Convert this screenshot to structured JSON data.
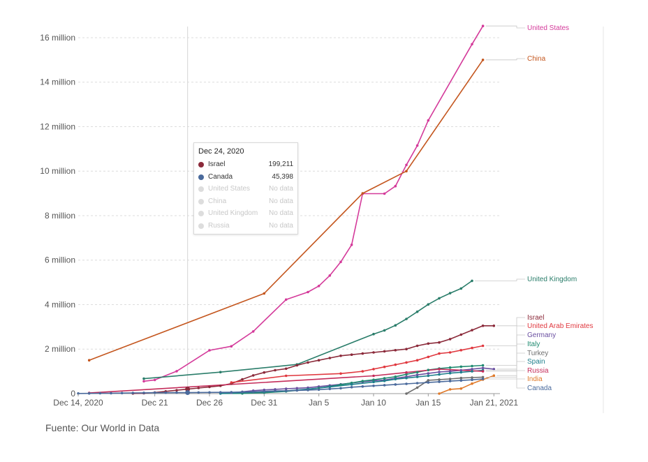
{
  "chart_data": {
    "type": "line",
    "x_ticks": [
      "Dec 14, 2020",
      "Dec 21",
      "Dec 26",
      "Dec 31",
      "Jan 5",
      "Jan 10",
      "Jan 15",
      "Jan 21, 2021"
    ],
    "y_ticks": [
      "0",
      "2 million",
      "4 million",
      "6 million",
      "8 million",
      "10 million",
      "12 million",
      "14 million",
      "16 million"
    ],
    "ylim": [
      0,
      16500000
    ],
    "x_range": [
      "2020-12-14",
      "2021-01-21"
    ],
    "grid": true,
    "legend_placement": "right",
    "hover_date": "2020-12-24",
    "series": [
      {
        "name": "United States",
        "color": "#d43a9a",
        "points": [
          [
            "2020-12-20",
            556000
          ],
          [
            "2020-12-21",
            614000
          ],
          [
            "2020-12-23",
            1008000
          ],
          [
            "2020-12-26",
            1944000
          ],
          [
            "2020-12-28",
            2128000
          ],
          [
            "2020-12-30",
            2795000
          ],
          [
            "2021-01-02",
            4225000
          ],
          [
            "2021-01-04",
            4564000
          ],
          [
            "2021-01-05",
            4837000
          ],
          [
            "2021-01-06",
            5307000
          ],
          [
            "2021-01-07",
            5919000
          ],
          [
            "2021-01-08",
            6689000
          ],
          [
            "2021-01-09",
            8987000
          ],
          [
            "2021-01-11",
            8987000
          ],
          [
            "2021-01-12",
            9327000
          ],
          [
            "2021-01-13",
            10278000
          ],
          [
            "2021-01-14",
            11149000
          ],
          [
            "2021-01-15",
            12279000
          ],
          [
            "2021-01-19",
            15707000
          ],
          [
            "2021-01-20",
            16525000
          ]
        ]
      },
      {
        "name": "China",
        "color": "#c4561e",
        "points": [
          [
            "2020-12-15",
            1500000
          ],
          [
            "2020-12-31",
            4500000
          ],
          [
            "2021-01-09",
            9000000
          ],
          [
            "2021-01-13",
            10000000
          ],
          [
            "2021-01-20",
            15000000
          ]
        ]
      },
      {
        "name": "United Kingdom",
        "color": "#2a7d6a",
        "points": [
          [
            "2020-12-20",
            670000
          ],
          [
            "2020-12-27",
            965000
          ],
          [
            "2021-01-03",
            1310000
          ],
          [
            "2021-01-10",
            2677000
          ],
          [
            "2021-01-11",
            2843000
          ],
          [
            "2021-01-12",
            3067000
          ],
          [
            "2021-01-13",
            3357000
          ],
          [
            "2021-01-14",
            3678000
          ],
          [
            "2021-01-15",
            4010000
          ],
          [
            "2021-01-16",
            4286000
          ],
          [
            "2021-01-17",
            4514000
          ],
          [
            "2021-01-18",
            4723000
          ],
          [
            "2021-01-19",
            5070000
          ]
        ]
      },
      {
        "name": "Israel",
        "color": "#8b2a3a",
        "points": [
          [
            "2020-12-19",
            7000
          ],
          [
            "2020-12-20",
            15000
          ],
          [
            "2020-12-21",
            50000
          ],
          [
            "2020-12-22",
            100000
          ],
          [
            "2020-12-23",
            150000
          ],
          [
            "2020-12-24",
            199211
          ],
          [
            "2020-12-25",
            250000
          ],
          [
            "2020-12-26",
            300000
          ],
          [
            "2020-12-27",
            350000
          ],
          [
            "2020-12-28",
            450000
          ],
          [
            "2020-12-29",
            640000
          ],
          [
            "2020-12-30",
            820000
          ],
          [
            "2020-12-31",
            950000
          ],
          [
            "2021-01-01",
            1050000
          ],
          [
            "2021-01-02",
            1120000
          ],
          [
            "2021-01-03",
            1270000
          ],
          [
            "2021-01-04",
            1400000
          ],
          [
            "2021-01-05",
            1500000
          ],
          [
            "2021-01-06",
            1600000
          ],
          [
            "2021-01-07",
            1700000
          ],
          [
            "2021-01-08",
            1750000
          ],
          [
            "2021-01-09",
            1800000
          ],
          [
            "2021-01-10",
            1850000
          ],
          [
            "2021-01-11",
            1900000
          ],
          [
            "2021-01-12",
            1950000
          ],
          [
            "2021-01-13",
            2000000
          ],
          [
            "2021-01-14",
            2150000
          ],
          [
            "2021-01-15",
            2250000
          ],
          [
            "2021-01-16",
            2300000
          ],
          [
            "2021-01-17",
            2450000
          ],
          [
            "2021-01-18",
            2650000
          ],
          [
            "2021-01-19",
            2850000
          ],
          [
            "2021-01-20",
            3050000
          ],
          [
            "2021-01-21",
            3050000
          ]
        ]
      },
      {
        "name": "United Arab Emirates",
        "color": "#e0383f",
        "points": [
          [
            "2020-12-28",
            500000
          ],
          [
            "2021-01-02",
            800000
          ],
          [
            "2021-01-07",
            900000
          ],
          [
            "2021-01-09",
            1000000
          ],
          [
            "2021-01-10",
            1100000
          ],
          [
            "2021-01-11",
            1200000
          ],
          [
            "2021-01-12",
            1300000
          ],
          [
            "2021-01-13",
            1400000
          ],
          [
            "2021-01-14",
            1500000
          ],
          [
            "2021-01-15",
            1650000
          ],
          [
            "2021-01-16",
            1800000
          ],
          [
            "2021-01-17",
            1850000
          ],
          [
            "2021-01-18",
            1950000
          ],
          [
            "2021-01-19",
            2050000
          ],
          [
            "2021-01-20",
            2150000
          ]
        ]
      },
      {
        "name": "Germany",
        "color": "#6a4fa0",
        "points": [
          [
            "2020-12-27",
            24000
          ],
          [
            "2020-12-28",
            42000
          ],
          [
            "2020-12-29",
            80000
          ],
          [
            "2020-12-30",
            131000
          ],
          [
            "2020-12-31",
            165000
          ],
          [
            "2021-01-01",
            190000
          ],
          [
            "2021-01-02",
            220000
          ],
          [
            "2021-01-03",
            240000
          ],
          [
            "2021-01-04",
            265000
          ],
          [
            "2021-01-05",
            317000
          ],
          [
            "2021-01-06",
            367000
          ],
          [
            "2021-01-07",
            417000
          ],
          [
            "2021-01-08",
            478000
          ],
          [
            "2021-01-09",
            533000
          ],
          [
            "2021-01-10",
            580000
          ],
          [
            "2021-01-11",
            613000
          ],
          [
            "2021-01-12",
            689000
          ],
          [
            "2021-01-13",
            758000
          ],
          [
            "2021-01-14",
            842000
          ],
          [
            "2021-01-15",
            906000
          ],
          [
            "2021-01-16",
            973000
          ],
          [
            "2021-01-17",
            1000000
          ],
          [
            "2021-01-18",
            1048000
          ],
          [
            "2021-01-19",
            1100000
          ],
          [
            "2021-01-20",
            1150000
          ],
          [
            "2021-01-21",
            1100000
          ]
        ]
      },
      {
        "name": "Italy",
        "color": "#1f8a70",
        "points": [
          [
            "2020-12-27",
            7000
          ],
          [
            "2020-12-29",
            9000
          ],
          [
            "2020-12-31",
            40000
          ],
          [
            "2021-01-02",
            100000
          ],
          [
            "2021-01-04",
            190000
          ],
          [
            "2021-01-05",
            250000
          ],
          [
            "2021-01-06",
            320000
          ],
          [
            "2021-01-07",
            400000
          ],
          [
            "2021-01-08",
            480000
          ],
          [
            "2021-01-09",
            560000
          ],
          [
            "2021-01-10",
            620000
          ],
          [
            "2021-01-11",
            690000
          ],
          [
            "2021-01-12",
            760000
          ],
          [
            "2021-01-13",
            870000
          ],
          [
            "2021-01-14",
            960000
          ],
          [
            "2021-01-15",
            1060000
          ],
          [
            "2021-01-16",
            1130000
          ],
          [
            "2021-01-17",
            1170000
          ],
          [
            "2021-01-18",
            1210000
          ],
          [
            "2021-01-19",
            1240000
          ],
          [
            "2021-01-20",
            1270000
          ]
        ]
      },
      {
        "name": "Turkey",
        "color": "#6e6e6e",
        "points": [
          [
            "2021-01-13",
            0
          ],
          [
            "2021-01-14",
            270000
          ],
          [
            "2021-01-15",
            600000
          ],
          [
            "2021-01-16",
            630000
          ],
          [
            "2021-01-17",
            660000
          ],
          [
            "2021-01-18",
            700000
          ],
          [
            "2021-01-19",
            720000
          ],
          [
            "2021-01-20",
            740000
          ]
        ]
      },
      {
        "name": "Spain",
        "color": "#1e7f8c",
        "points": [
          [
            "2020-12-27",
            5000
          ],
          [
            "2020-12-31",
            82000
          ],
          [
            "2021-01-02",
            120000
          ],
          [
            "2021-01-04",
            200000
          ],
          [
            "2021-01-06",
            300000
          ],
          [
            "2021-01-08",
            410000
          ],
          [
            "2021-01-10",
            520000
          ],
          [
            "2021-01-11",
            570000
          ],
          [
            "2021-01-12",
            650000
          ],
          [
            "2021-01-13",
            700000
          ],
          [
            "2021-01-14",
            750000
          ],
          [
            "2021-01-15",
            800000
          ],
          [
            "2021-01-16",
            860000
          ],
          [
            "2021-01-17",
            920000
          ],
          [
            "2021-01-18",
            960000
          ],
          [
            "2021-01-19",
            1000000
          ],
          [
            "2021-01-20",
            1050000
          ]
        ]
      },
      {
        "name": "Russia",
        "color": "#c42c5a",
        "points": [
          [
            "2020-12-15",
            28500
          ],
          [
            "2021-01-10",
            800000
          ],
          [
            "2021-01-13",
            950000
          ],
          [
            "2021-01-16",
            1100000
          ],
          [
            "2021-01-20",
            1000000
          ]
        ]
      },
      {
        "name": "India",
        "color": "#e07a2a",
        "points": [
          [
            "2021-01-16",
            0
          ],
          [
            "2021-01-17",
            190000
          ],
          [
            "2021-01-18",
            225000
          ],
          [
            "2021-01-19",
            450000
          ],
          [
            "2021-01-20",
            630000
          ],
          [
            "2021-01-21",
            810000
          ]
        ]
      },
      {
        "name": "Canada",
        "color": "#4a6a9c",
        "points": [
          [
            "2020-12-14",
            5000
          ],
          [
            "2020-12-15",
            10000
          ],
          [
            "2020-12-16",
            15000
          ],
          [
            "2020-12-17",
            20000
          ],
          [
            "2020-12-18",
            25000
          ],
          [
            "2020-12-19",
            30000
          ],
          [
            "2020-12-20",
            35000
          ],
          [
            "2020-12-21",
            40000
          ],
          [
            "2020-12-22",
            42000
          ],
          [
            "2020-12-23",
            44000
          ],
          [
            "2020-12-24",
            45398
          ],
          [
            "2020-12-25",
            50000
          ],
          [
            "2020-12-26",
            52000
          ],
          [
            "2020-12-27",
            55000
          ],
          [
            "2020-12-28",
            60000
          ],
          [
            "2020-12-29",
            70000
          ],
          [
            "2020-12-30",
            80000
          ],
          [
            "2020-12-31",
            100000
          ],
          [
            "2021-01-01",
            120000
          ],
          [
            "2021-01-02",
            130000
          ],
          [
            "2021-01-03",
            140000
          ],
          [
            "2021-01-04",
            160000
          ],
          [
            "2021-01-05",
            180000
          ],
          [
            "2021-01-06",
            210000
          ],
          [
            "2021-01-07",
            240000
          ],
          [
            "2021-01-08",
            290000
          ],
          [
            "2021-01-09",
            320000
          ],
          [
            "2021-01-10",
            350000
          ],
          [
            "2021-01-11",
            380000
          ],
          [
            "2021-01-12",
            410000
          ],
          [
            "2021-01-13",
            440000
          ],
          [
            "2021-01-14",
            470000
          ],
          [
            "2021-01-15",
            500000
          ],
          [
            "2021-01-16",
            530000
          ],
          [
            "2021-01-17",
            560000
          ],
          [
            "2021-01-18",
            590000
          ],
          [
            "2021-01-19",
            620000
          ],
          [
            "2021-01-20",
            660000
          ]
        ]
      }
    ],
    "tooltip": {
      "date": "Dec 24, 2020",
      "rows": [
        {
          "name": "Israel",
          "value": "199,211",
          "color": "#8b2a3a",
          "active": true
        },
        {
          "name": "Canada",
          "value": "45,398",
          "color": "#4a6a9c",
          "active": true
        },
        {
          "name": "United States",
          "value": "No data",
          "color": "#dddddd",
          "active": false
        },
        {
          "name": "China",
          "value": "No data",
          "color": "#dddddd",
          "active": false
        },
        {
          "name": "United Kingdom",
          "value": "No data",
          "color": "#dddddd",
          "active": false
        },
        {
          "name": "Russia",
          "value": "No data",
          "color": "#dddddd",
          "active": false
        }
      ]
    }
  },
  "source": "Fuente: Our World in Data"
}
